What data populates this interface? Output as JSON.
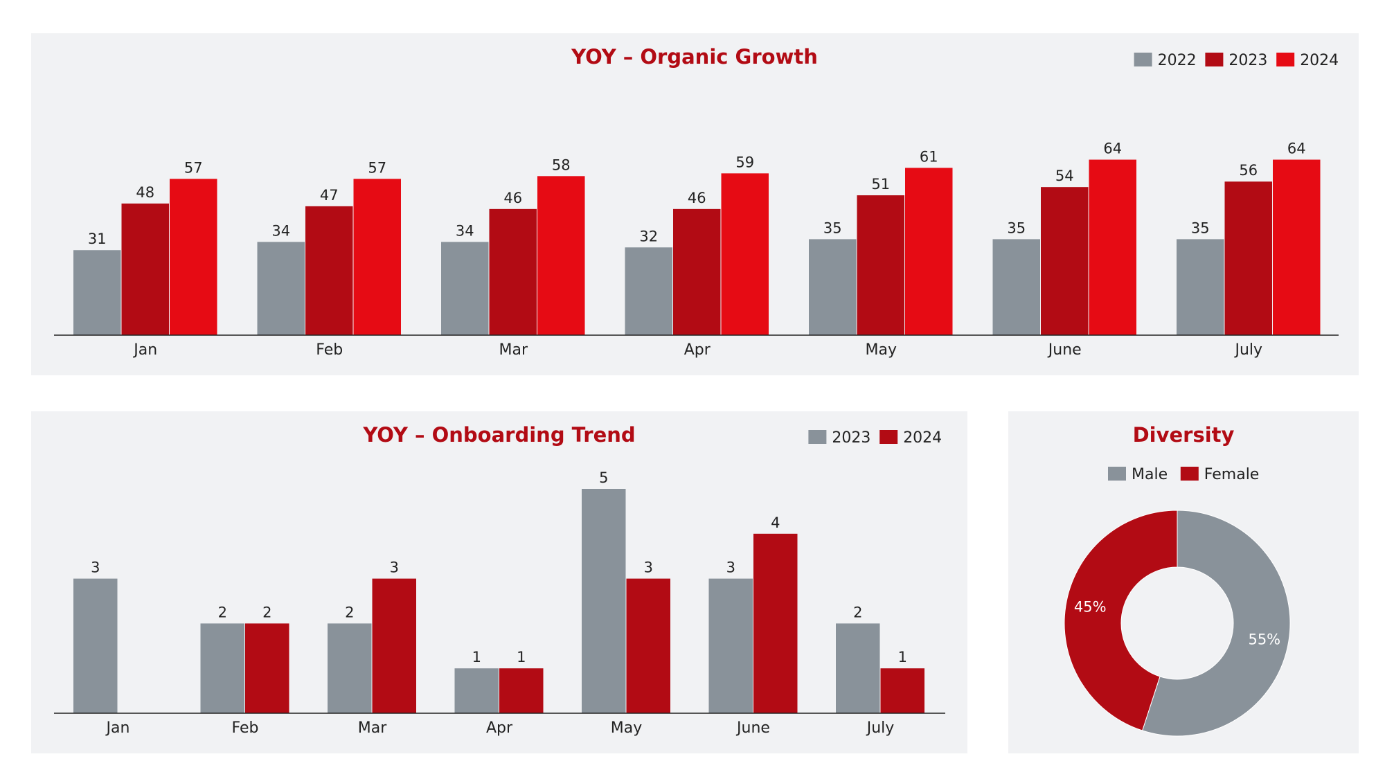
{
  "colors": {
    "gray": "#89929a",
    "dark_red": "#b20b14",
    "red": "#e60b14",
    "title": "#b20b14"
  },
  "chart_data": [
    {
      "type": "bar",
      "title": "YOY – Organic Growth",
      "categories": [
        "Jan",
        "Feb",
        "Mar",
        "Apr",
        "May",
        "June",
        "July"
      ],
      "series": [
        {
          "name": "2022",
          "color": "#89929a",
          "values": [
            31,
            34,
            34,
            32,
            35,
            35,
            35
          ]
        },
        {
          "name": "2023",
          "color": "#b20b14",
          "values": [
            48,
            47,
            46,
            46,
            51,
            54,
            56
          ]
        },
        {
          "name": "2024",
          "color": "#e60b14",
          "values": [
            57,
            57,
            58,
            59,
            61,
            64,
            64
          ]
        }
      ],
      "legend_position": "top-right",
      "ylim": [
        0,
        70
      ],
      "grid": false
    },
    {
      "type": "bar",
      "title": "YOY – Onboarding Trend",
      "categories": [
        "Jan",
        "Feb",
        "Mar",
        "Apr",
        "May",
        "June",
        "July"
      ],
      "series": [
        {
          "name": "2023",
          "color": "#89929a",
          "values": [
            3,
            2,
            2,
            1,
            5,
            3,
            2
          ]
        },
        {
          "name": "2024",
          "color": "#b20b14",
          "values": [
            null,
            2,
            3,
            1,
            3,
            4,
            1
          ]
        }
      ],
      "legend_position": "top-right",
      "ylim": [
        0,
        5
      ],
      "grid": false
    },
    {
      "type": "pie",
      "title": "Diversity",
      "donut": true,
      "slices": [
        {
          "label": "Male",
          "value": 55,
          "display": "55%",
          "color": "#89929a"
        },
        {
          "label": "Female",
          "value": 45,
          "display": "45%",
          "color": "#b20b14"
        }
      ],
      "legend_position": "top"
    }
  ]
}
